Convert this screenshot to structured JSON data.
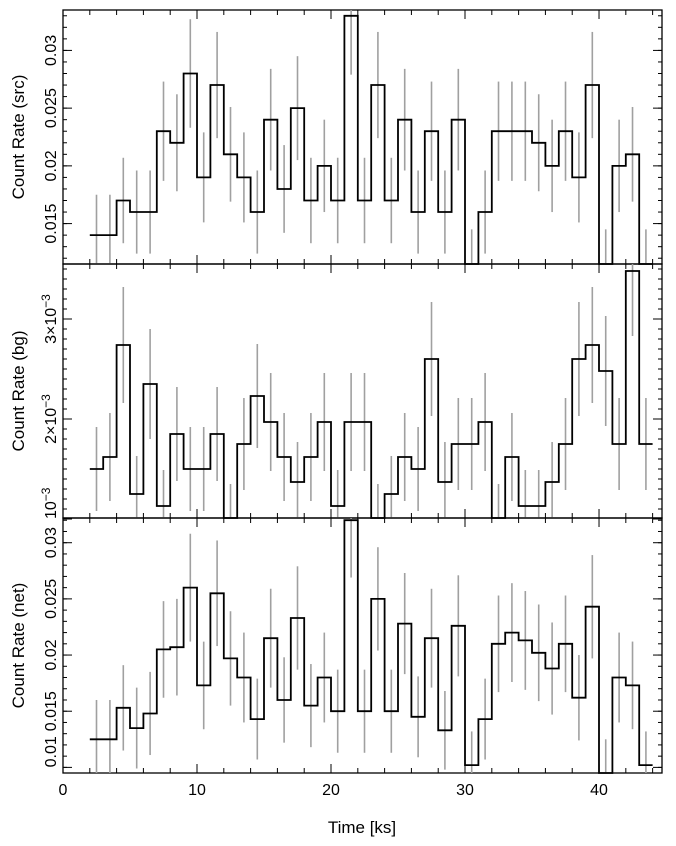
{
  "chart_data": [
    {
      "type": "line",
      "panel": "top",
      "ylabel": "Count Rate (src)",
      "ylim": [
        0.0115,
        0.0335
      ],
      "yticks": [
        0.015,
        0.02,
        0.025,
        0.03
      ],
      "ytick_labels": [
        "0.015",
        "0.02",
        "0.025",
        "0.03"
      ],
      "x": [
        2.0,
        3.0,
        4.0,
        5.0,
        6.0,
        7.0,
        8.0,
        9.0,
        10.0,
        11.0,
        12.0,
        13.0,
        14.0,
        15.0,
        16.0,
        17.0,
        18.0,
        19.0,
        20.0,
        21.0,
        22.0,
        23.0,
        24.0,
        25.0,
        26.0,
        27.0,
        28.0,
        29.0,
        30.0,
        31.0,
        32.0,
        33.0,
        34.0,
        35.0,
        36.0,
        37.0,
        38.0,
        39.0,
        40.0,
        41.0,
        42.0,
        43.0
      ],
      "values": [
        0.014,
        0.014,
        0.017,
        0.016,
        0.016,
        0.023,
        0.022,
        0.028,
        0.019,
        0.027,
        0.021,
        0.019,
        0.016,
        0.024,
        0.018,
        0.025,
        0.017,
        0.02,
        0.017,
        0.033,
        0.017,
        0.027,
        0.017,
        0.024,
        0.016,
        0.023,
        0.016,
        0.024,
        0.0115,
        0.016,
        0.023,
        0.023,
        0.023,
        0.022,
        0.02,
        0.023,
        0.019,
        0.027,
        0.0115,
        0.02,
        0.021,
        0.0115
      ],
      "errors": [
        0.0035,
        0.0035,
        0.0037,
        0.0036,
        0.0036,
        0.0043,
        0.0042,
        0.0047,
        0.0039,
        0.0046,
        0.0041,
        0.0039,
        0.0036,
        0.0044,
        0.0038,
        0.0045,
        0.0037,
        0.004,
        0.0037,
        0.0051,
        0.0037,
        0.0046,
        0.0037,
        0.0044,
        0.0036,
        0.0043,
        0.0036,
        0.0044,
        0.003,
        0.0036,
        0.0043,
        0.0043,
        0.0043,
        0.0042,
        0.004,
        0.0043,
        0.0039,
        0.0046,
        0.003,
        0.004,
        0.0041,
        0.003
      ]
    },
    {
      "type": "line",
      "panel": "middle",
      "ylabel": "Count Rate (bg)",
      "ylim": [
        0.00101,
        0.00355
      ],
      "yticks": [
        0.001,
        0.002,
        0.003
      ],
      "ytick_labels": [
        "10⁻³",
        "2×10⁻³",
        "3×10⁻³"
      ],
      "x": [
        2.0,
        3.0,
        4.0,
        5.0,
        6.0,
        7.0,
        8.0,
        9.0,
        10.0,
        11.0,
        12.0,
        13.0,
        14.0,
        15.0,
        16.0,
        17.0,
        18.0,
        19.0,
        20.0,
        21.0,
        22.0,
        23.0,
        24.0,
        25.0,
        26.0,
        27.0,
        28.0,
        29.0,
        30.0,
        31.0,
        32.0,
        33.0,
        34.0,
        35.0,
        36.0,
        37.0,
        38.0,
        39.0,
        40.0,
        41.0,
        42.0,
        43.0
      ],
      "values": [
        0.0015,
        0.00162,
        0.00274,
        0.00125,
        0.00235,
        0.00113,
        0.00185,
        0.0015,
        0.0015,
        0.00185,
        0.00101,
        0.00175,
        0.00223,
        0.00197,
        0.00162,
        0.00137,
        0.00162,
        0.00197,
        0.00113,
        0.00197,
        0.00197,
        0.00101,
        0.00125,
        0.00162,
        0.0015,
        0.0026,
        0.00137,
        0.00175,
        0.00175,
        0.00197,
        0.00101,
        0.00162,
        0.00113,
        0.00113,
        0.00137,
        0.00175,
        0.0026,
        0.00274,
        0.00248,
        0.00175,
        0.00348,
        0.00175
      ],
      "errors": [
        0.00042,
        0.00044,
        0.00058,
        0.00038,
        0.00055,
        0.00036,
        0.00047,
        0.00042,
        0.00042,
        0.00047,
        0.00034,
        0.00046,
        0.00052,
        0.00049,
        0.00044,
        0.0004,
        0.00044,
        0.00049,
        0.00036,
        0.00049,
        0.00049,
        0.00034,
        0.00038,
        0.00044,
        0.00042,
        0.00057,
        0.0004,
        0.00046,
        0.00046,
        0.00049,
        0.00034,
        0.00044,
        0.00036,
        0.00036,
        0.0004,
        0.00046,
        0.00057,
        0.00058,
        0.00055,
        0.00046,
        0.00065,
        0.00046
      ]
    },
    {
      "type": "line",
      "panel": "bottom",
      "ylabel": "Count Rate (net)",
      "ylim": [
        0.0095,
        0.0322
      ],
      "yticks": [
        0.01,
        0.015,
        0.02,
        0.025,
        0.03
      ],
      "ytick_labels": [
        "0.01",
        "0.015",
        "0.02",
        "0.025",
        "0.03"
      ],
      "x": [
        2.0,
        3.0,
        4.0,
        5.0,
        6.0,
        7.0,
        8.0,
        9.0,
        10.0,
        11.0,
        12.0,
        13.0,
        14.0,
        15.0,
        16.0,
        17.0,
        18.0,
        19.0,
        20.0,
        21.0,
        22.0,
        23.0,
        24.0,
        25.0,
        26.0,
        27.0,
        28.0,
        29.0,
        30.0,
        31.0,
        32.0,
        33.0,
        34.0,
        35.0,
        36.0,
        37.0,
        38.0,
        39.0,
        40.0,
        41.0,
        42.0,
        43.0
      ],
      "values": [
        0.0125,
        0.0125,
        0.0153,
        0.0135,
        0.0148,
        0.0205,
        0.0207,
        0.026,
        0.0173,
        0.0255,
        0.0197,
        0.018,
        0.0143,
        0.0215,
        0.016,
        0.0233,
        0.0155,
        0.018,
        0.015,
        0.032,
        0.015,
        0.025,
        0.015,
        0.0228,
        0.0145,
        0.0215,
        0.0133,
        0.0226,
        0.0102,
        0.0143,
        0.021,
        0.022,
        0.0213,
        0.0202,
        0.0188,
        0.021,
        0.0162,
        0.0243,
        0.0095,
        0.018,
        0.0173,
        0.0102
      ],
      "errors": [
        0.0035,
        0.0035,
        0.0038,
        0.0036,
        0.0037,
        0.0043,
        0.0043,
        0.0048,
        0.0039,
        0.0047,
        0.0042,
        0.004,
        0.0036,
        0.0044,
        0.0038,
        0.0046,
        0.0037,
        0.004,
        0.0037,
        0.0051,
        0.0037,
        0.0046,
        0.0037,
        0.0045,
        0.0036,
        0.0044,
        0.0035,
        0.0045,
        0.003,
        0.0036,
        0.0043,
        0.0044,
        0.0044,
        0.0043,
        0.0041,
        0.0043,
        0.0038,
        0.0046,
        0.003,
        0.004,
        0.0039,
        0.003
      ]
    }
  ],
  "xaxis": {
    "label": "Time [ks]",
    "xlim": [
      0,
      44.7
    ],
    "major_ticks": [
      0,
      10,
      20,
      30,
      40
    ],
    "tick_labels": [
      "0",
      "10",
      "20",
      "30",
      "40"
    ]
  },
  "colors": {
    "line": "#000000",
    "errorbar": "#a0a0a0"
  }
}
